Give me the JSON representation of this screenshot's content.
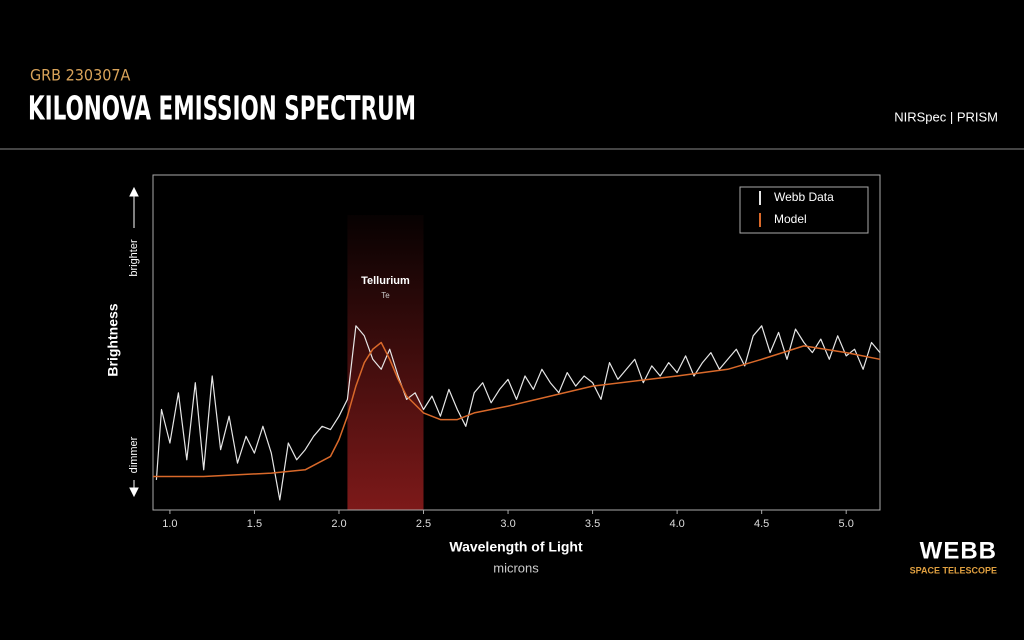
{
  "chart_data": {
    "type": "line",
    "subtitle": "GRB 230307A",
    "title": "KILONOVA EMISSION SPECTRUM",
    "instrument": "NIRSpec | PRISM",
    "x_label": "Wavelength of Light",
    "x_unit": "microns",
    "y_label": "Brightness",
    "y_high_label": "brighter",
    "y_low_label": "dimmer",
    "xlim": [
      0.9,
      5.2
    ],
    "ylim": [
      0,
      100
    ],
    "xticks": [
      {
        "value": 1.0,
        "label": "1.0"
      },
      {
        "value": 1.5,
        "label": "1.5"
      },
      {
        "value": 2.0,
        "label": "2.0"
      },
      {
        "value": 2.5,
        "label": "2.5"
      },
      {
        "value": 3.0,
        "label": "3.0"
      },
      {
        "value": 3.5,
        "label": "3.5"
      },
      {
        "value": 4.0,
        "label": "4.0"
      },
      {
        "value": 4.5,
        "label": "4.5"
      },
      {
        "value": 5.0,
        "label": "5.0"
      }
    ],
    "legend": "upper right",
    "highlight": {
      "label": "Tellurium",
      "sublabel": "Te",
      "xrange": [
        2.05,
        2.5
      ],
      "color": "#8b1c1c"
    },
    "series": [
      {
        "name": "Webb Data",
        "color": "#e6e6e6",
        "x": [
          0.92,
          0.95,
          1.0,
          1.05,
          1.1,
          1.15,
          1.2,
          1.25,
          1.3,
          1.35,
          1.4,
          1.45,
          1.5,
          1.55,
          1.6,
          1.65,
          1.7,
          1.75,
          1.8,
          1.85,
          1.9,
          1.95,
          2.0,
          2.05,
          2.1,
          2.15,
          2.2,
          2.25,
          2.3,
          2.35,
          2.4,
          2.45,
          2.5,
          2.55,
          2.6,
          2.65,
          2.7,
          2.75,
          2.8,
          2.85,
          2.9,
          2.95,
          3.0,
          3.05,
          3.1,
          3.15,
          3.2,
          3.25,
          3.3,
          3.35,
          3.4,
          3.45,
          3.5,
          3.55,
          3.6,
          3.65,
          3.7,
          3.75,
          3.8,
          3.85,
          3.9,
          3.95,
          4.0,
          4.05,
          4.1,
          4.15,
          4.2,
          4.25,
          4.3,
          4.35,
          4.4,
          4.45,
          4.5,
          4.55,
          4.6,
          4.65,
          4.7,
          4.75,
          4.8,
          4.85,
          4.9,
          4.95,
          5.0,
          5.05,
          5.1,
          5.15,
          5.2
        ],
        "values": [
          9,
          30,
          20,
          35,
          15,
          38,
          12,
          40,
          18,
          28,
          14,
          22,
          17,
          25,
          17,
          3,
          20,
          15,
          18,
          22,
          25,
          24,
          28,
          33,
          55,
          52,
          45,
          42,
          48,
          40,
          33,
          35,
          30,
          34,
          28,
          36,
          30,
          25,
          35,
          38,
          32,
          36,
          39,
          33,
          40,
          36,
          42,
          38,
          35,
          41,
          37,
          40,
          38,
          33,
          44,
          39,
          42,
          45,
          38,
          43,
          40,
          44,
          41,
          46,
          40,
          44,
          47,
          42,
          45,
          48,
          43,
          52,
          55,
          47,
          53,
          45,
          54,
          50,
          47,
          51,
          45,
          52,
          46,
          48,
          42,
          50,
          47
        ]
      },
      {
        "name": "Model",
        "color": "#d9692a",
        "x": [
          0.9,
          1.2,
          1.6,
          1.8,
          1.95,
          2.0,
          2.05,
          2.1,
          2.15,
          2.2,
          2.25,
          2.3,
          2.35,
          2.4,
          2.5,
          2.6,
          2.7,
          2.8,
          3.0,
          3.5,
          4.0,
          4.3,
          4.5,
          4.75,
          5.0,
          5.2
        ],
        "values": [
          10,
          10,
          11,
          12,
          16,
          21,
          28,
          37,
          44,
          48,
          50,
          45,
          39,
          34,
          29,
          27,
          27,
          29,
          31,
          37,
          40,
          42,
          45,
          49,
          47,
          45
        ]
      }
    ]
  },
  "logo": {
    "name": "WEBB",
    "tagline": "SPACE TELESCOPE"
  }
}
